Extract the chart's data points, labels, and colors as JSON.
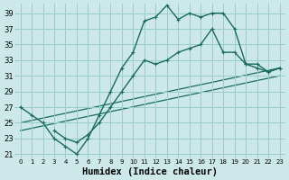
{
  "background_color": "#cce8e8",
  "grid_color": "#99cccc",
  "line_color": "#1a6b5a",
  "marker": "+",
  "xlabel": "Humidex (Indice chaleur)",
  "xlabel_fontsize": 7.5,
  "ylabel_ticks": [
    21,
    23,
    25,
    27,
    29,
    31,
    33,
    35,
    37,
    39
  ],
  "xlim": [
    -0.5,
    23.5
  ],
  "ylim": [
    20.5,
    40.2
  ],
  "xtick_labels": [
    "0",
    "1",
    "2",
    "3",
    "4",
    "5",
    "6",
    "7",
    "8",
    "9",
    "10",
    "11",
    "12",
    "13",
    "14",
    "15",
    "16",
    "17",
    "18",
    "19",
    "20",
    "21",
    "22",
    "23"
  ],
  "curve1_x": [
    0,
    1,
    2,
    3,
    4,
    5,
    6,
    7,
    8,
    9,
    10,
    11,
    12,
    13,
    14,
    15,
    16,
    17,
    18,
    19,
    20,
    21,
    22,
    23
  ],
  "curve1_y": [
    27,
    26,
    25,
    23,
    22,
    21,
    23,
    26,
    29,
    32,
    34,
    38,
    38.5,
    40,
    38.2,
    39,
    38.5,
    39,
    39,
    37,
    32.5,
    32.5,
    31.5,
    32
  ],
  "curve2_x": [
    3,
    4,
    5,
    6,
    7,
    8,
    9,
    10,
    11,
    12,
    13,
    14,
    15,
    16,
    17,
    18,
    19,
    20,
    21,
    22,
    23
  ],
  "curve2_y": [
    24,
    23,
    22.5,
    23.5,
    25,
    27,
    29,
    31,
    33,
    32.5,
    33,
    34,
    34.5,
    35,
    37,
    34,
    34,
    32.5,
    32,
    31.5,
    32
  ],
  "line1_x": [
    0,
    23
  ],
  "line1_y": [
    25,
    32
  ],
  "line2_x": [
    0,
    23
  ],
  "line2_y": [
    24,
    31
  ]
}
